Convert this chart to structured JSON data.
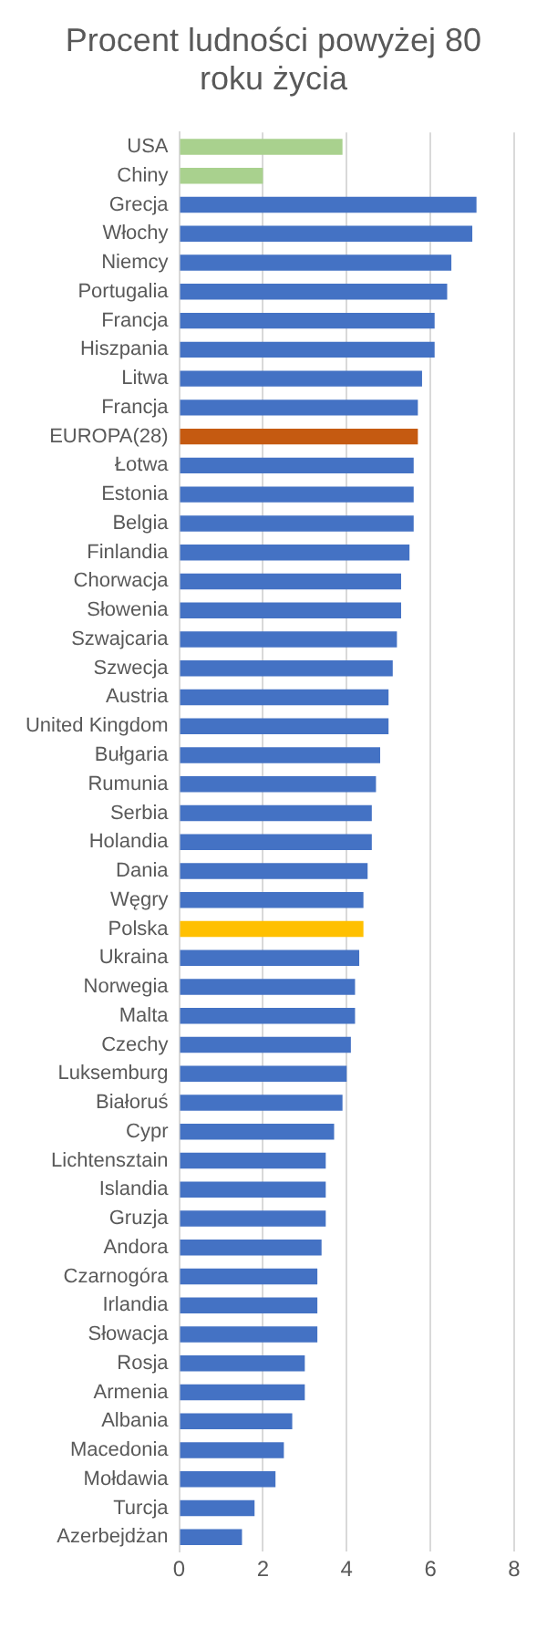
{
  "chart_data": {
    "type": "bar",
    "orientation": "horizontal",
    "title": "Procent ludności powyżej 80 roku życia",
    "categories": [
      "USA",
      "Chiny",
      "Grecja",
      "Włochy",
      "Niemcy",
      "Portugalia",
      "Francja",
      "Hiszpania",
      "Litwa",
      "Francja",
      "EUROPA(28)",
      "Łotwa",
      "Estonia",
      "Belgia",
      "Finlandia",
      "Chorwacja",
      "Słowenia",
      "Szwajcaria",
      "Szwecja",
      "Austria",
      "United Kingdom",
      "Bułgaria",
      "Rumunia",
      "Serbia",
      "Holandia",
      "Dania",
      "Węgry",
      "Polska",
      "Ukraina",
      "Norwegia",
      "Malta",
      "Czechy",
      "Luksemburg",
      "Białoruś",
      "Cypr",
      "Lichtensztain",
      "Islandia",
      "Gruzja",
      "Andora",
      "Czarnogóra",
      "Irlandia",
      "Słowacja",
      "Rosja",
      "Armenia",
      "Albania",
      "Macedonia",
      "Mołdawia",
      "Turcja",
      "Azerbejdżan"
    ],
    "values": [
      3.9,
      2.0,
      7.1,
      7.0,
      6.5,
      6.4,
      6.1,
      6.1,
      5.8,
      5.7,
      5.7,
      5.6,
      5.6,
      5.6,
      5.5,
      5.3,
      5.3,
      5.2,
      5.1,
      5.0,
      5.0,
      4.8,
      4.7,
      4.6,
      4.6,
      4.5,
      4.4,
      4.4,
      4.3,
      4.2,
      4.2,
      4.1,
      4.0,
      3.9,
      3.7,
      3.5,
      3.5,
      3.5,
      3.4,
      3.3,
      3.3,
      3.3,
      3.0,
      3.0,
      2.7,
      2.5,
      2.3,
      1.8,
      1.5
    ],
    "colors": [
      "#a9d18e",
      "#a9d18e",
      "#4472c4",
      "#4472c4",
      "#4472c4",
      "#4472c4",
      "#4472c4",
      "#4472c4",
      "#4472c4",
      "#4472c4",
      "#c55a11",
      "#4472c4",
      "#4472c4",
      "#4472c4",
      "#4472c4",
      "#4472c4",
      "#4472c4",
      "#4472c4",
      "#4472c4",
      "#4472c4",
      "#4472c4",
      "#4472c4",
      "#4472c4",
      "#4472c4",
      "#4472c4",
      "#4472c4",
      "#4472c4",
      "#ffc000",
      "#4472c4",
      "#4472c4",
      "#4472c4",
      "#4472c4",
      "#4472c4",
      "#4472c4",
      "#4472c4",
      "#4472c4",
      "#4472c4",
      "#4472c4",
      "#4472c4",
      "#4472c4",
      "#4472c4",
      "#4472c4",
      "#4472c4",
      "#4472c4",
      "#4472c4",
      "#4472c4",
      "#4472c4",
      "#4472c4",
      "#4472c4"
    ],
    "xlim": [
      0,
      8
    ],
    "xticks": [
      0,
      2,
      4,
      6,
      8
    ],
    "grid": "x"
  }
}
